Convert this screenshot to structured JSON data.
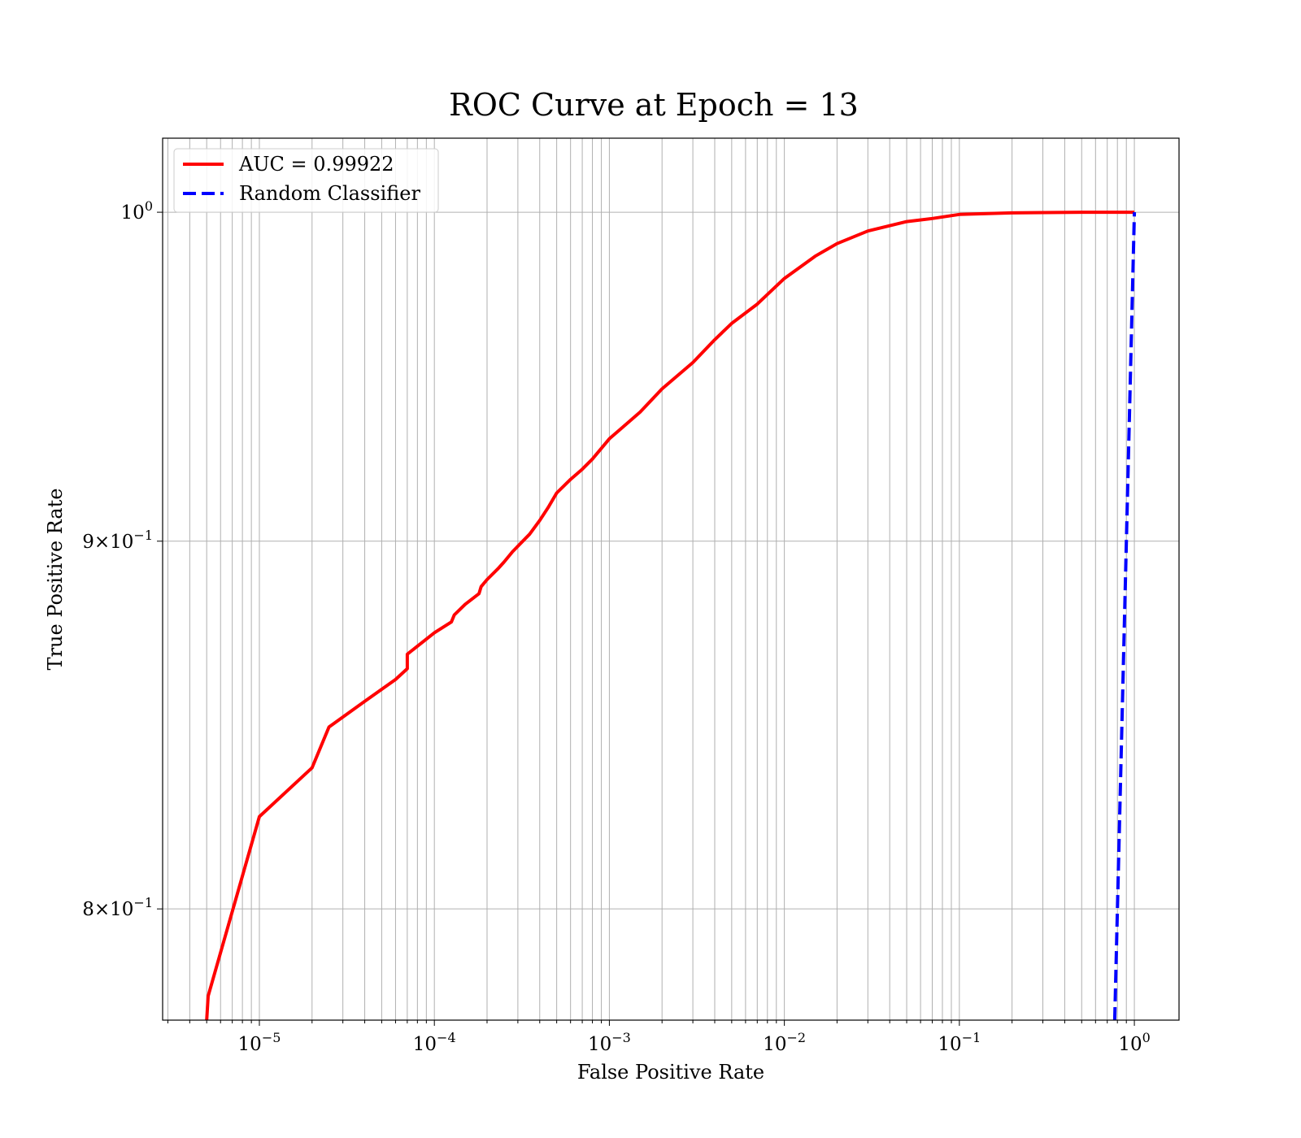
{
  "chart_data": {
    "type": "line",
    "title": "ROC Curve at Epoch = 13",
    "xlabel": "False Positive Rate",
    "ylabel": "True Positive Rate",
    "xscale": "log",
    "yscale": "log",
    "xlim": [
      2.8e-06,
      1.8
    ],
    "ylim": [
      0.772,
      1.024
    ],
    "grid": true,
    "grid_minor": true,
    "legend_position": "top-left",
    "x_ticks": [
      {
        "value": 1e-05,
        "base": "10",
        "exp": "−5"
      },
      {
        "value": 0.0001,
        "base": "10",
        "exp": "−4"
      },
      {
        "value": 0.001,
        "base": "10",
        "exp": "−3"
      },
      {
        "value": 0.01,
        "base": "10",
        "exp": "−2"
      },
      {
        "value": 0.1,
        "base": "10",
        "exp": "−1"
      },
      {
        "value": 1,
        "base": "10",
        "exp": "0"
      }
    ],
    "y_ticks": [
      {
        "value": 1.0,
        "base": "10",
        "exp": "0"
      },
      {
        "value": 0.9,
        "base": "9×10",
        "exp": "−1"
      },
      {
        "value": 0.8,
        "base": "8×10",
        "exp": "−1"
      }
    ],
    "series": [
      {
        "name": "AUC = 0.99922",
        "color": "#ff0000",
        "style": "solid",
        "x": [
          5e-06,
          5.1e-06,
          1e-05,
          2e-05,
          2.5e-05,
          4e-05,
          6e-05,
          7e-05,
          7e-05,
          0.0001,
          0.000125,
          0.00013,
          0.00015,
          0.00018,
          0.000185,
          0.0002,
          0.00023,
          0.00025,
          0.00028,
          0.00035,
          0.0004,
          0.00045,
          0.0005,
          0.0006,
          0.0007,
          0.0008,
          0.001,
          0.0015,
          0.002,
          0.003,
          0.004,
          0.005,
          0.007,
          0.01,
          0.015,
          0.02,
          0.03,
          0.05,
          0.07,
          0.1,
          0.2,
          0.5,
          1.0
        ],
        "y": [
          0.772,
          0.778,
          0.824,
          0.837,
          0.848,
          0.855,
          0.861,
          0.864,
          0.868,
          0.874,
          0.877,
          0.879,
          0.882,
          0.885,
          0.887,
          0.889,
          0.892,
          0.894,
          0.897,
          0.902,
          0.906,
          0.91,
          0.914,
          0.918,
          0.921,
          0.924,
          0.93,
          0.938,
          0.945,
          0.953,
          0.96,
          0.965,
          0.971,
          0.979,
          0.986,
          0.99,
          0.994,
          0.997,
          0.998,
          0.9993,
          0.9998,
          1.0,
          1.0
        ]
      },
      {
        "name": "Random Classifier",
        "color": "#0000ff",
        "style": "dashed",
        "x": [
          0.772,
          1.0
        ],
        "y": [
          0.772,
          1.0
        ]
      }
    ]
  }
}
